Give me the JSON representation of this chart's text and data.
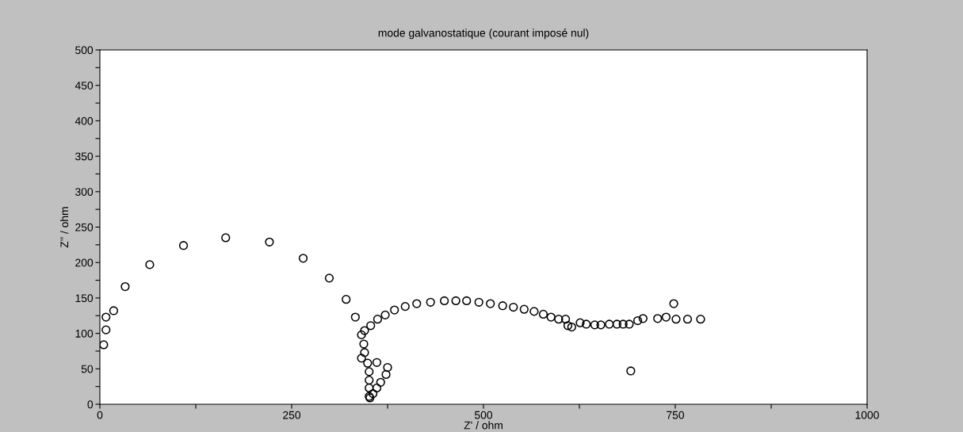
{
  "chart_data": {
    "type": "scatter",
    "title": "mode galvanostatique (courant imposé nul)",
    "xlabel": "Z' / ohm",
    "ylabel": "Z'' / ohm",
    "xlim": [
      0,
      1000
    ],
    "ylim": [
      0,
      500
    ],
    "xticks": [
      0,
      {
        "value": 125,
        "label": null
      },
      250,
      {
        "value": 375,
        "label": null
      },
      500,
      {
        "value": 625,
        "label": null
      },
      750,
      {
        "value": 875,
        "label": null
      },
      1000
    ],
    "yticks": [
      0,
      {
        "value": 25,
        "label": null
      },
      50,
      {
        "value": 75,
        "label": null
      },
      100,
      {
        "value": 125,
        "label": null
      },
      150,
      {
        "value": 175,
        "label": null
      },
      200,
      {
        "value": 225,
        "label": null
      },
      250,
      {
        "value": 275,
        "label": null
      },
      300,
      {
        "value": 325,
        "label": null
      },
      350,
      {
        "value": 375,
        "label": null
      },
      400,
      {
        "value": 425,
        "label": null
      },
      450,
      {
        "value": 475,
        "label": null
      },
      500
    ],
    "grid": false,
    "legend": false,
    "marker": "circle",
    "series": [
      {
        "color": "#000000",
        "x": [
          5,
          8,
          8,
          18,
          33,
          65,
          109,
          164,
          221,
          265,
          299,
          321,
          333,
          341,
          344,
          345,
          341,
          349,
          351,
          351,
          351,
          351,
          352,
          356,
          361,
          366,
          373,
          375,
          361,
          345,
          353,
          362,
          372,
          384,
          398,
          413,
          431,
          449,
          464,
          478,
          494,
          509,
          525,
          539,
          553,
          566,
          578,
          588,
          598,
          607,
          610,
          615,
          626,
          634,
          645,
          653,
          664,
          674,
          682,
          690,
          701,
          708,
          727,
          738,
          748,
          751,
          766,
          783,
          692
        ],
        "values": [
          84,
          105,
          123,
          132,
          166,
          197,
          224,
          235,
          229,
          206,
          178,
          148,
          123,
          98,
          85,
          73,
          65,
          58,
          46,
          34,
          23,
          11,
          9,
          15,
          23,
          31,
          42,
          52,
          59,
          104,
          111,
          120,
          126,
          133,
          138,
          142,
          144,
          146,
          146,
          146,
          144,
          142,
          139,
          137,
          134,
          131,
          127,
          123,
          120,
          120,
          111,
          109,
          115,
          113,
          112,
          112,
          113,
          113,
          113,
          113,
          118,
          121,
          121,
          123,
          142,
          120,
          120,
          120,
          47
        ]
      }
    ]
  }
}
